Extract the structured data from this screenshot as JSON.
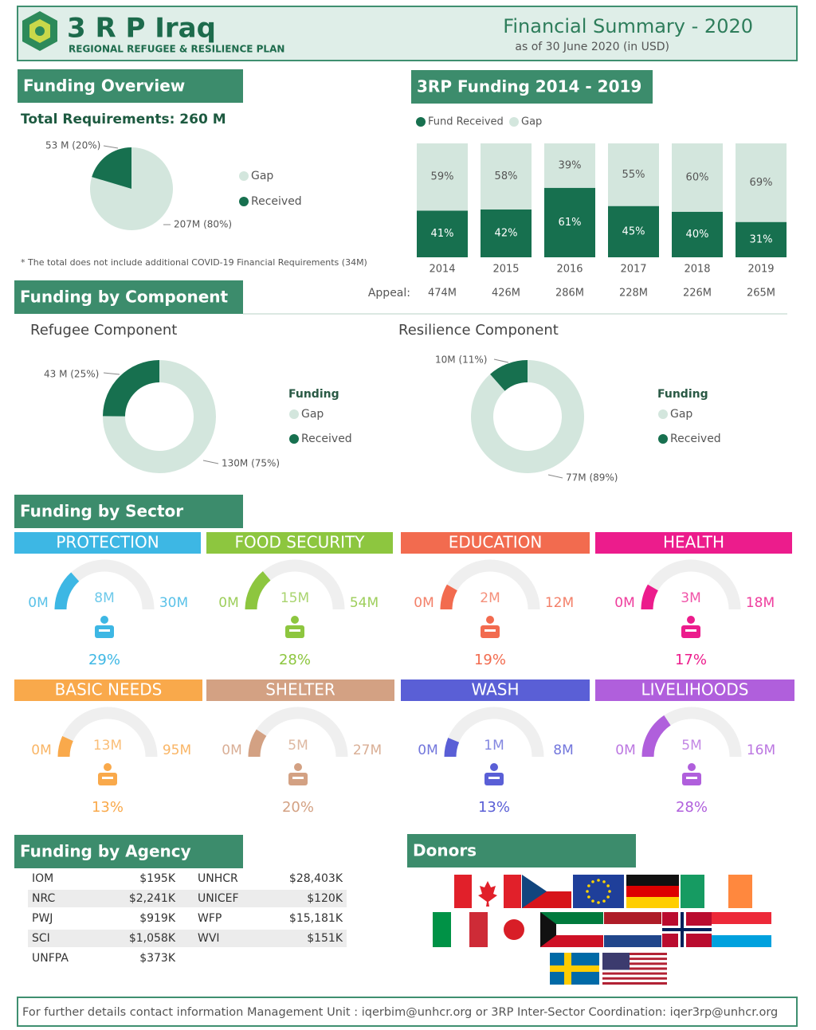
{
  "header": {
    "logo_title": "3 R P Iraq",
    "logo_subtitle": "REGIONAL REFUGEE & RESILIENCE PLAN",
    "title": "Financial Summary -  2020",
    "subtitle": "as of 30 June 2020 (in USD)"
  },
  "sections": {
    "overview": "Funding Overview",
    "history": "3RP Funding 2014 - 2019",
    "component": "Funding by Component",
    "refugee": "Refugee Component",
    "resilience": "Resilience Component",
    "sector": "Funding by Sector",
    "agency": "Funding by Agency",
    "donors": "Donors"
  },
  "overview": {
    "total": "Total Requirements: 260 M",
    "note": "* The total does not include additional COVID-19 Financial Requirements (34M)"
  },
  "chart_data": [
    {
      "type": "pie",
      "categories": [
        "Gap",
        "Received"
      ],
      "values": [
        207,
        53
      ],
      "value_labels": [
        "207M (80%)",
        "53 M (20%)"
      ],
      "colors": [
        "#d3e6dd",
        "#17704f"
      ]
    },
    {
      "type": "stacked_bar",
      "categories": [
        "2014",
        "2015",
        "2016",
        "2017",
        "2018",
        "2019"
      ],
      "series": [
        {
          "name": "Fund Received",
          "color": "#17704f",
          "values": [
            41,
            42,
            61,
            45,
            40,
            31
          ],
          "value_labels": [
            "41%",
            "42%",
            "61%",
            "45%",
            "40%",
            "31%"
          ]
        },
        {
          "name": "Gap",
          "color": "#d3e6dd",
          "values": [
            59,
            58,
            39,
            55,
            60,
            69
          ],
          "value_labels": [
            "59%",
            "58%",
            "39%",
            "55%",
            "60%",
            "69%"
          ]
        }
      ],
      "appeal_label": "Appeal:",
      "appeal": [
        "474M",
        "426M",
        "286M",
        "228M",
        "226M",
        "265M"
      ]
    },
    {
      "type": "donut",
      "legend_title": "Funding",
      "categories": [
        "Gap",
        "Received"
      ],
      "values": [
        130,
        43
      ],
      "value_labels": [
        "130M (75%)",
        "43 M (25%)"
      ],
      "colors": [
        "#d3e6dd",
        "#17704f"
      ]
    },
    {
      "type": "donut",
      "legend_title": "Funding",
      "categories": [
        "Gap",
        "Received"
      ],
      "values": [
        77,
        10
      ],
      "value_labels": [
        "77M (89%)",
        "10M (11%)"
      ],
      "colors": [
        "#d3e6dd",
        "#17704f"
      ]
    },
    {
      "type": "gauge",
      "title": "PROTECTION",
      "color": "#3db7e4",
      "ylim": [
        0,
        30
      ],
      "yticks": [
        {
          "value": 0,
          "label": "0M"
        },
        {
          "value": 30,
          "label": "30M"
        }
      ],
      "values": [
        8
      ],
      "value_labels": [
        "8M"
      ],
      "percent_label": "29%"
    },
    {
      "type": "gauge",
      "title": "FOOD SECURITY",
      "color": "#8dc63f",
      "ylim": [
        0,
        54
      ],
      "yticks": [
        {
          "value": 0,
          "label": "0M"
        },
        {
          "value": 54,
          "label": "54M"
        }
      ],
      "values": [
        15
      ],
      "value_labels": [
        "15M"
      ],
      "percent_label": "28%"
    },
    {
      "type": "gauge",
      "title": "EDUCATION",
      "color": "#f26b4f",
      "ylim": [
        0,
        12
      ],
      "yticks": [
        {
          "value": 0,
          "label": "0M"
        },
        {
          "value": 12,
          "label": "12M"
        }
      ],
      "values": [
        2
      ],
      "value_labels": [
        "2M"
      ],
      "percent_label": "19%"
    },
    {
      "type": "gauge",
      "title": "HEALTH",
      "color": "#ec1c8c",
      "ylim": [
        0,
        18
      ],
      "yticks": [
        {
          "value": 0,
          "label": "0M"
        },
        {
          "value": 18,
          "label": "18M"
        }
      ],
      "values": [
        3
      ],
      "value_labels": [
        "3M"
      ],
      "percent_label": "17%"
    },
    {
      "type": "gauge",
      "title": "BASIC NEEDS",
      "color": "#f9a94b",
      "ylim": [
        0,
        95
      ],
      "yticks": [
        {
          "value": 0,
          "label": "0M"
        },
        {
          "value": 95,
          "label": "95M"
        }
      ],
      "values": [
        13
      ],
      "value_labels": [
        "13M"
      ],
      "percent_label": "13%"
    },
    {
      "type": "gauge",
      "title": "SHELTER",
      "color": "#d3a183",
      "ylim": [
        0,
        27
      ],
      "yticks": [
        {
          "value": 0,
          "label": "0M"
        },
        {
          "value": 27,
          "label": "27M"
        }
      ],
      "values": [
        5
      ],
      "value_labels": [
        "5M"
      ],
      "percent_label": "20%"
    },
    {
      "type": "gauge",
      "title": "WASH",
      "color": "#5a5fd6",
      "ylim": [
        0,
        8
      ],
      "yticks": [
        {
          "value": 0,
          "label": "0M"
        },
        {
          "value": 8,
          "label": "8M"
        }
      ],
      "values": [
        1
      ],
      "value_labels": [
        "1M"
      ],
      "percent_label": "13%"
    },
    {
      "type": "gauge",
      "title": "LIVELIHOODS",
      "color": "#b05fdc",
      "ylim": [
        0,
        16
      ],
      "yticks": [
        {
          "value": 0,
          "label": "0M"
        },
        {
          "value": 16,
          "label": "16M"
        }
      ],
      "values": [
        5
      ],
      "value_labels": [
        "5M"
      ],
      "percent_label": "28%"
    }
  ],
  "agencies": {
    "rows": [
      [
        "IOM",
        "$195K",
        "UNHCR",
        "$28,403K"
      ],
      [
        "NRC",
        "$2,241K",
        "UNICEF",
        "$120K"
      ],
      [
        "PWJ",
        "$919K",
        "WFP",
        "$15,181K"
      ],
      [
        "SCI",
        "$1,058K",
        "WVI",
        "$151K"
      ],
      [
        "UNFPA",
        "$373K"
      ]
    ]
  },
  "footer": "For further details contact information Management Unit : iqerbim@unhcr.org or 3RP Inter-Sector Coordination: iqer3rp@unhcr.org"
}
